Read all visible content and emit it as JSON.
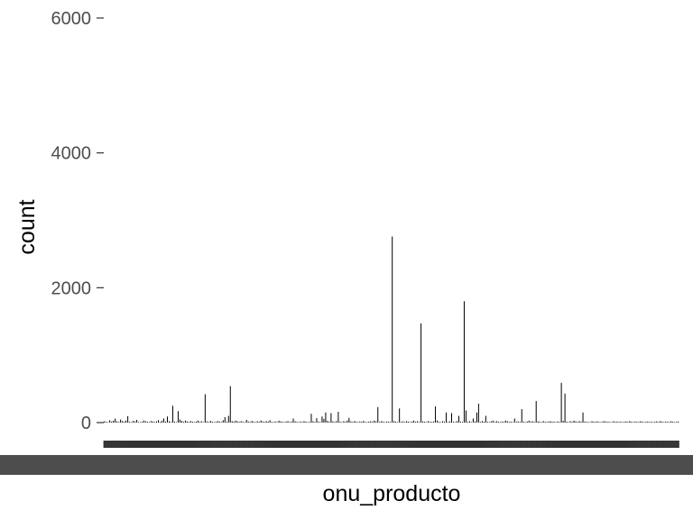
{
  "chart_data": {
    "type": "bar",
    "title": "",
    "xlabel": "onu_producto",
    "ylabel": "count",
    "ylim": [
      0,
      6000
    ],
    "yticks": [
      0,
      2000,
      4000,
      6000
    ],
    "grid": false,
    "bar_color": "#000000",
    "panel_background": "#ffffff",
    "x_tick_labels_legible": false,
    "n_categories": 320,
    "values": [
      20,
      12,
      8,
      35,
      15,
      28,
      60,
      18,
      10,
      45,
      22,
      14,
      30,
      95,
      12,
      8,
      25,
      18,
      40,
      10,
      6,
      15,
      30,
      20,
      12,
      8,
      22,
      16,
      10,
      18,
      35,
      12,
      28,
      60,
      15,
      90,
      20,
      10,
      250,
      14,
      8,
      170,
      45,
      25,
      12,
      30,
      18,
      10,
      22,
      14,
      8,
      16,
      30,
      12,
      20,
      8,
      420,
      18,
      10,
      25,
      14,
      8,
      12,
      22,
      15,
      10,
      35,
      80,
      12,
      100,
      540,
      20,
      14,
      30,
      18,
      10,
      22,
      12,
      8,
      40,
      16,
      10,
      25,
      14,
      8,
      20,
      12,
      30,
      18,
      10,
      22,
      14,
      35,
      12,
      8,
      16,
      10,
      28,
      18,
      12,
      8,
      15,
      22,
      10,
      14,
      60,
      20,
      12,
      8,
      16,
      10,
      22,
      14,
      8,
      12,
      130,
      20,
      10,
      65,
      14,
      8,
      90,
      55,
      150,
      25,
      12,
      140,
      18,
      10,
      22,
      160,
      14,
      8,
      20,
      12,
      30,
      70,
      18,
      10,
      22,
      14,
      8,
      16,
      12,
      25,
      10,
      8,
      14,
      20,
      12,
      30,
      18,
      230,
      10,
      22,
      14,
      8,
      16,
      12,
      10,
      2760,
      20,
      14,
      8,
      210,
      12,
      18,
      10,
      22,
      14,
      8,
      16,
      30,
      12,
      20,
      10,
      1470,
      18,
      14,
      8,
      22,
      12,
      10,
      16,
      240,
      30,
      12,
      8,
      20,
      14,
      150,
      10,
      18,
      140,
      12,
      8,
      22,
      100,
      14,
      10,
      1800,
      180,
      12,
      20,
      8,
      60,
      16,
      150,
      280,
      10,
      22,
      14,
      100,
      12,
      8,
      18,
      30,
      10,
      22,
      14,
      8,
      16,
      12,
      30,
      20,
      10,
      14,
      8,
      60,
      12,
      18,
      10,
      200,
      14,
      8,
      16,
      30,
      12,
      20,
      10,
      320,
      18,
      14,
      8,
      22,
      12,
      10,
      16,
      20,
      12,
      14,
      8,
      18,
      10,
      590,
      25,
      430,
      14,
      8,
      20,
      12,
      30,
      18,
      10,
      22,
      14,
      150,
      16,
      12,
      10,
      8,
      20,
      14,
      12,
      18,
      10,
      8,
      16,
      22,
      12,
      14,
      10,
      8,
      20,
      12,
      16,
      10,
      14,
      8,
      12,
      18,
      10,
      22,
      14,
      8,
      16,
      12,
      10,
      20,
      14,
      8,
      12,
      16,
      10,
      14,
      8,
      12,
      18,
      10,
      22,
      14,
      8,
      16,
      12,
      10,
      20,
      14,
      8,
      12,
      16
    ]
  }
}
